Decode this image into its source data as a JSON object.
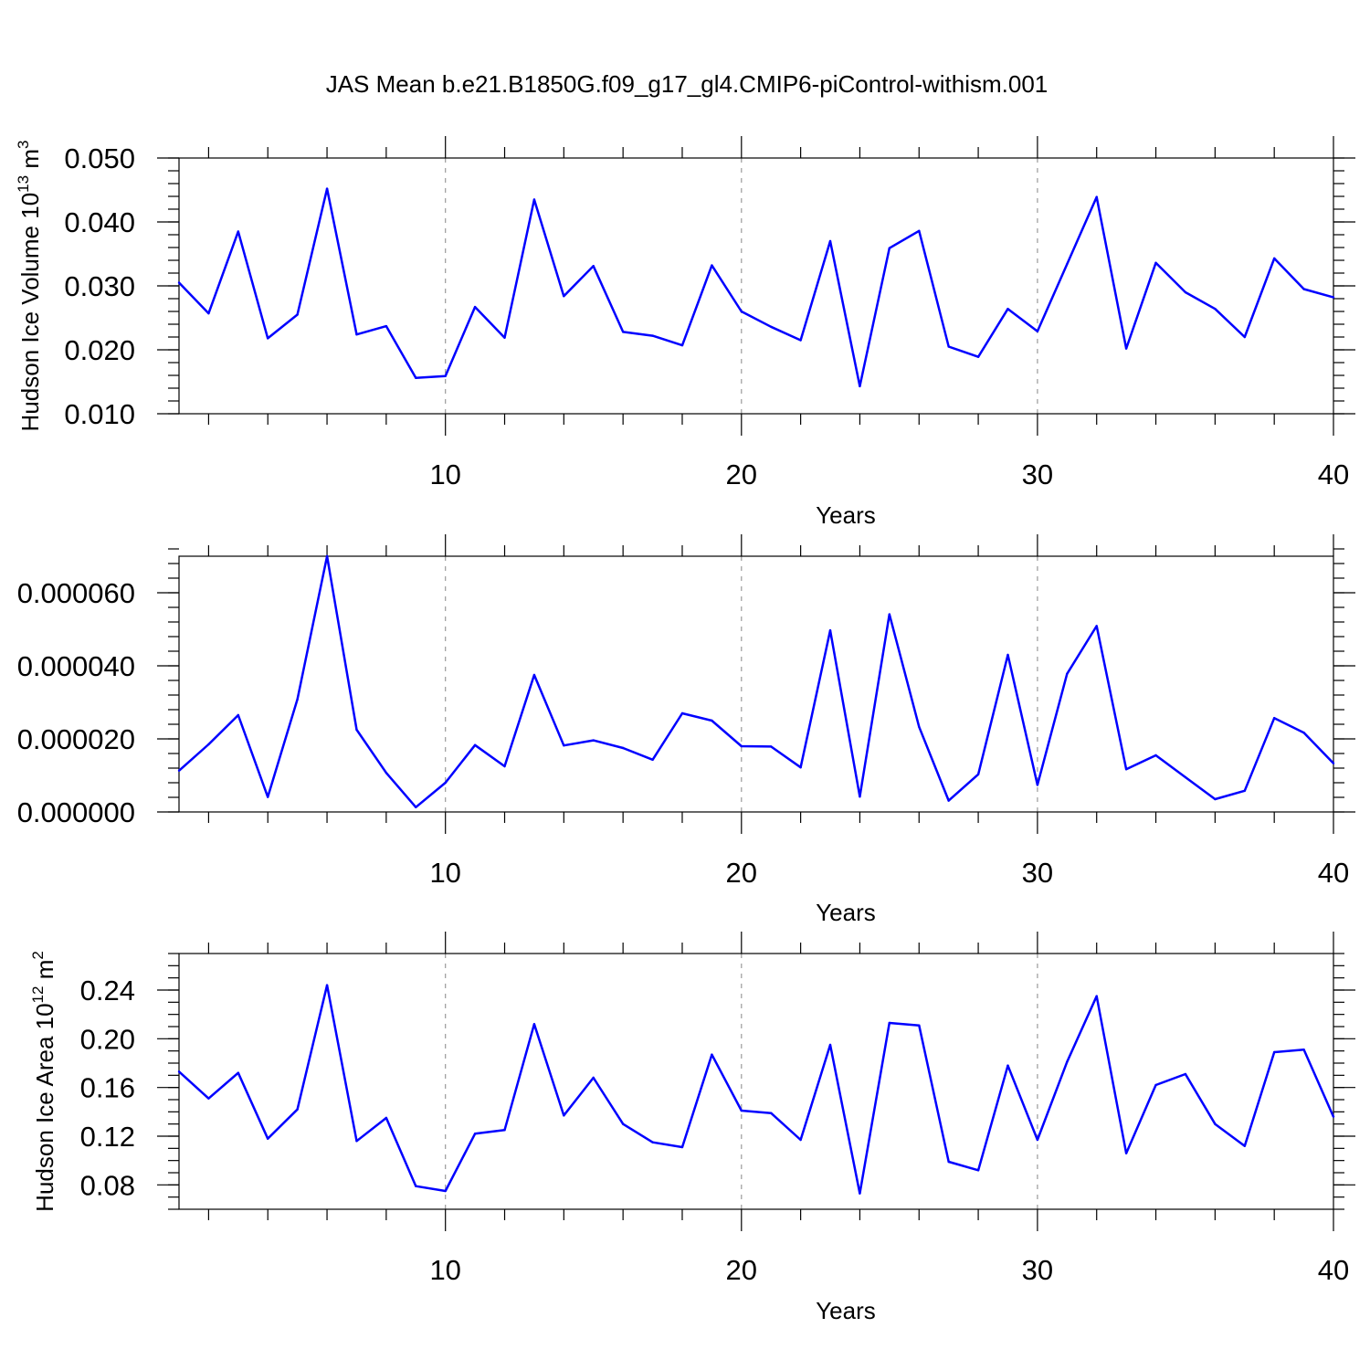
{
  "title": "JAS Mean b.e21.B1850G.f09_g17_gl4.CMIP6-piControl-withism.001",
  "colors": {
    "series": "#0000ff",
    "grid": "#9a9a9a",
    "frame": "#000000"
  },
  "chart_data": [
    {
      "type": "line",
      "title": "",
      "xlabel": "Years",
      "ylabel": "Hudson Ice Volume 10",
      "ylabel_sup": "13",
      "ylabel_unit": " m",
      "ylabel_unit_sup": "3",
      "xlim": [
        1,
        40
      ],
      "ylim": [
        0.01,
        0.05
      ],
      "x_ticks": [
        10,
        20,
        30,
        40
      ],
      "x_tick_labels": [
        "10",
        "20",
        "30",
        "40"
      ],
      "y_ticks": [
        0.01,
        0.02,
        0.03,
        0.04,
        0.05
      ],
      "y_tick_labels": [
        "0.010",
        "0.020",
        "0.030",
        "0.040",
        "0.050"
      ],
      "y_minor_step": 0.002,
      "grid": "x-dashed",
      "x": [
        1,
        2,
        3,
        4,
        5,
        6,
        7,
        8,
        9,
        10,
        11,
        12,
        13,
        14,
        15,
        16,
        17,
        18,
        19,
        20,
        21,
        22,
        23,
        24,
        25,
        26,
        27,
        28,
        29,
        30,
        31,
        32,
        33,
        34,
        35,
        36,
        37,
        38,
        39,
        40
      ],
      "values": [
        0.0305,
        0.0257,
        0.0385,
        0.0218,
        0.0255,
        0.0452,
        0.0224,
        0.0237,
        0.0156,
        0.0159,
        0.0267,
        0.0219,
        0.0435,
        0.0284,
        0.0331,
        0.0228,
        0.0222,
        0.0207,
        0.0332,
        0.026,
        0.0236,
        0.0215,
        0.037,
        0.0143,
        0.0359,
        0.0386,
        0.0205,
        0.0189,
        0.0264,
        0.0229,
        0.0334,
        0.0439,
        0.0202,
        0.0336,
        0.029,
        0.0264,
        0.022,
        0.0343,
        0.0295,
        0.0282
      ]
    },
    {
      "type": "line",
      "title": "",
      "xlabel": "Years",
      "ylabel": "",
      "xlim": [
        1,
        40
      ],
      "ylim": [
        0.0,
        7e-05
      ],
      "x_ticks": [
        10,
        20,
        30,
        40
      ],
      "x_tick_labels": [
        "10",
        "20",
        "30",
        "40"
      ],
      "y_ticks": [
        0.0,
        2e-05,
        4e-05,
        6e-05
      ],
      "y_tick_labels": [
        "0.000000",
        "0.000020",
        "0.000040",
        "0.000060"
      ],
      "y_minor_step": 4e-06,
      "grid": "x-dashed",
      "x": [
        1,
        2,
        3,
        4,
        5,
        6,
        7,
        8,
        9,
        10,
        11,
        12,
        13,
        14,
        15,
        16,
        17,
        18,
        19,
        20,
        21,
        22,
        23,
        24,
        25,
        26,
        27,
        28,
        29,
        30,
        31,
        32,
        33,
        34,
        35,
        36,
        37,
        38,
        39,
        40
      ],
      "values": [
        1.13e-05,
        1.85e-05,
        2.65e-05,
        4.1e-06,
        3.08e-05,
        7e-05,
        2.25e-05,
        1.07e-05,
        1.3e-06,
        8e-06,
        1.83e-05,
        1.25e-05,
        3.75e-05,
        1.82e-05,
        1.96e-05,
        1.75e-05,
        1.43e-05,
        2.7e-05,
        2.5e-05,
        1.8e-05,
        1.79e-05,
        1.22e-05,
        4.97e-05,
        4.2e-06,
        5.41e-05,
        2.33e-05,
        3.1e-06,
        1.03e-05,
        4.3e-05,
        7.4e-06,
        3.78e-05,
        5.09e-05,
        1.17e-05,
        1.55e-05,
        9.5e-06,
        3.5e-06,
        5.8e-06,
        2.57e-05,
        2.17e-05,
        1.33e-05
      ]
    },
    {
      "type": "line",
      "title": "",
      "xlabel": "Years",
      "ylabel": "Hudson Ice Area 10",
      "ylabel_sup": "12",
      "ylabel_unit": " m",
      "ylabel_unit_sup": "2",
      "xlim": [
        1,
        40
      ],
      "ylim": [
        0.06,
        0.27
      ],
      "x_ticks": [
        10,
        20,
        30,
        40
      ],
      "x_tick_labels": [
        "10",
        "20",
        "30",
        "40"
      ],
      "y_ticks": [
        0.08,
        0.12,
        0.16,
        0.2,
        0.24
      ],
      "y_tick_labels": [
        "0.08",
        "0.12",
        "0.16",
        "0.20",
        "0.24"
      ],
      "y_minor_step": 0.01,
      "grid": "x-dashed",
      "x": [
        1,
        2,
        3,
        4,
        5,
        6,
        7,
        8,
        9,
        10,
        11,
        12,
        13,
        14,
        15,
        16,
        17,
        18,
        19,
        20,
        21,
        22,
        23,
        24,
        25,
        26,
        27,
        28,
        29,
        30,
        31,
        32,
        33,
        34,
        35,
        36,
        37,
        38,
        39,
        40
      ],
      "values": [
        0.173,
        0.151,
        0.172,
        0.118,
        0.142,
        0.244,
        0.116,
        0.135,
        0.079,
        0.075,
        0.122,
        0.125,
        0.212,
        0.137,
        0.168,
        0.13,
        0.115,
        0.111,
        0.187,
        0.141,
        0.139,
        0.117,
        0.195,
        0.073,
        0.213,
        0.211,
        0.099,
        0.092,
        0.178,
        0.117,
        0.181,
        0.235,
        0.106,
        0.162,
        0.171,
        0.13,
        0.112,
        0.189,
        0.191,
        0.136
      ]
    }
  ]
}
